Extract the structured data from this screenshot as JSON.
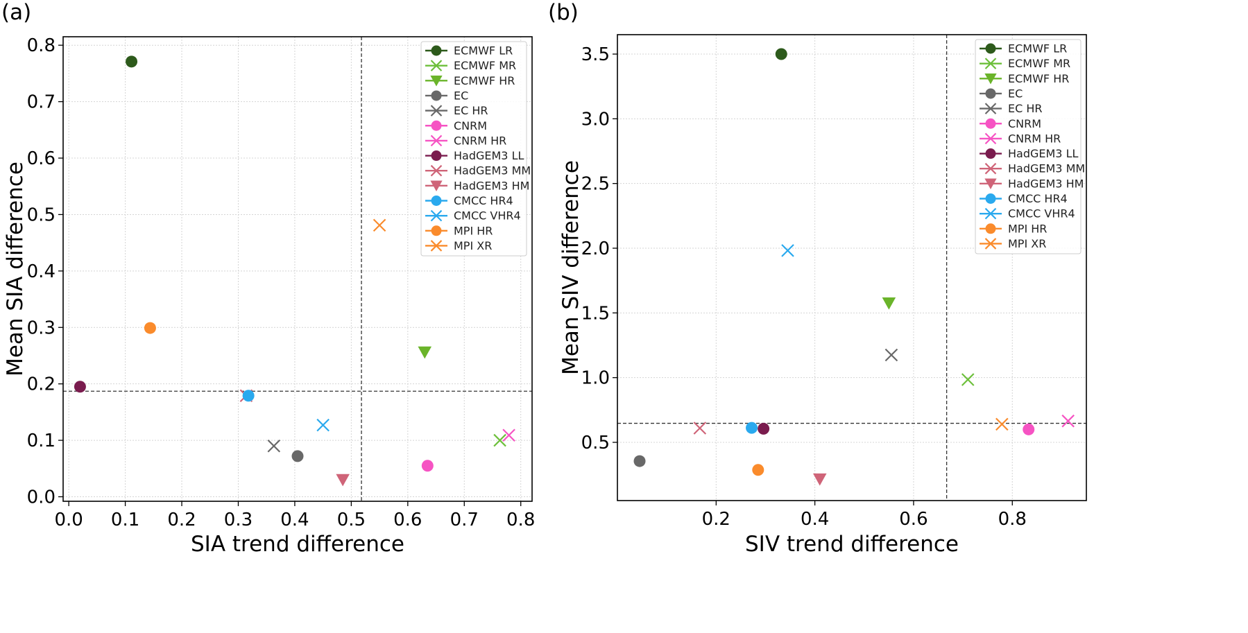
{
  "chart_data": [
    {
      "type": "scatter",
      "panel_label": "(a)",
      "xlabel": "SIA trend difference",
      "ylabel": "Mean SIA difference",
      "xlim": [
        -0.01,
        0.82
      ],
      "ylim": [
        -0.008,
        0.815
      ],
      "xticks": [
        0.0,
        0.1,
        0.2,
        0.3,
        0.4,
        0.5,
        0.6,
        0.7,
        0.8
      ],
      "xtick_labels": [
        "0.0",
        "0.1",
        "0.2",
        "0.3",
        "0.4",
        "0.5",
        "0.6",
        "0.7",
        "0.8"
      ],
      "yticks": [
        0.0,
        0.1,
        0.2,
        0.3,
        0.4,
        0.5,
        0.6,
        0.7,
        0.8
      ],
      "ytick_labels": [
        "0.0",
        "0.1",
        "0.2",
        "0.3",
        "0.4",
        "0.5",
        "0.6",
        "0.7",
        "0.8"
      ],
      "grid": true,
      "ref_lines": {
        "vertical_x": 0.518,
        "horizontal_y": 0.187
      },
      "legend_position": "upper-right",
      "series": [
        {
          "name": "ECMWF LR",
          "marker": "circle",
          "color": "#2d5a1b",
          "x": 0.111,
          "y": 0.771
        },
        {
          "name": "ECMWF MR",
          "marker": "x",
          "color": "#6cbf3a",
          "x": 0.763,
          "y": 0.1
        },
        {
          "name": "ECMWF HR",
          "marker": "triangle-down",
          "color": "#6ab42a",
          "x": 0.63,
          "y": 0.256
        },
        {
          "name": "EC",
          "marker": "circle",
          "color": "#686868",
          "x": 0.405,
          "y": 0.072
        },
        {
          "name": "EC HR",
          "marker": "x",
          "color": "#686868",
          "x": 0.363,
          "y": 0.09
        },
        {
          "name": "CNRM",
          "marker": "circle",
          "color": "#f653c3",
          "x": 0.635,
          "y": 0.055
        },
        {
          "name": "CNRM HR",
          "marker": "x",
          "color": "#f653c3",
          "x": 0.779,
          "y": 0.109
        },
        {
          "name": "HadGEM3 LL",
          "marker": "circle",
          "color": "#7a1c4e",
          "x": 0.02,
          "y": 0.195
        },
        {
          "name": "HadGEM3 MM",
          "marker": "x",
          "color": "#cf6478",
          "x": 0.314,
          "y": 0.179
        },
        {
          "name": "HadGEM3 HM",
          "marker": "triangle-down",
          "color": "#cf6478",
          "x": 0.485,
          "y": 0.03
        },
        {
          "name": "CMCC HR4",
          "marker": "circle",
          "color": "#2aa9ee",
          "x": 0.318,
          "y": 0.179
        },
        {
          "name": "CMCC VHR4",
          "marker": "x",
          "color": "#2aa9ee",
          "x": 0.45,
          "y": 0.127
        },
        {
          "name": "MPI HR",
          "marker": "circle",
          "color": "#fa8b2c",
          "x": 0.144,
          "y": 0.299
        },
        {
          "name": "MPI XR",
          "marker": "x",
          "color": "#fa8b2c",
          "x": 0.55,
          "y": 0.481
        }
      ]
    },
    {
      "type": "scatter",
      "panel_label": "(b)",
      "xlabel": "SIV trend difference",
      "ylabel": "Mean SIV difference",
      "xlim": [
        0.0,
        0.95
      ],
      "ylim": [
        0.05,
        3.65
      ],
      "xticks": [
        0.2,
        0.4,
        0.6,
        0.8
      ],
      "xtick_labels": [
        "0.2",
        "0.4",
        "0.6",
        "0.8"
      ],
      "yticks": [
        0.5,
        1.0,
        1.5,
        2.0,
        2.5,
        3.0,
        3.5
      ],
      "ytick_labels": [
        "0.5",
        "1.0",
        "1.5",
        "2.0",
        "2.5",
        "3.0",
        "3.5"
      ],
      "grid": true,
      "ref_lines": {
        "vertical_x": 0.667,
        "horizontal_y": 0.647
      },
      "legend_position": "upper-right",
      "series": [
        {
          "name": "ECMWF LR",
          "marker": "circle",
          "color": "#2d5a1b",
          "x": 0.332,
          "y": 3.5
        },
        {
          "name": "ECMWF MR",
          "marker": "x",
          "color": "#6cbf3a",
          "x": 0.71,
          "y": 0.985
        },
        {
          "name": "ECMWF HR",
          "marker": "triangle-down",
          "color": "#6ab42a",
          "x": 0.55,
          "y": 1.575
        },
        {
          "name": "EC",
          "marker": "circle",
          "color": "#686868",
          "x": 0.045,
          "y": 0.355
        },
        {
          "name": "EC HR",
          "marker": "x",
          "color": "#686868",
          "x": 0.555,
          "y": 1.175
        },
        {
          "name": "CNRM",
          "marker": "circle",
          "color": "#f653c3",
          "x": 0.833,
          "y": 0.6
        },
        {
          "name": "CNRM HR",
          "marker": "x",
          "color": "#f653c3",
          "x": 0.913,
          "y": 0.665
        },
        {
          "name": "HadGEM3 LL",
          "marker": "circle",
          "color": "#7a1c4e",
          "x": 0.296,
          "y": 0.605
        },
        {
          "name": "HadGEM3 MM",
          "marker": "x",
          "color": "#cf6478",
          "x": 0.167,
          "y": 0.61
        },
        {
          "name": "HadGEM3 HM",
          "marker": "triangle-down",
          "color": "#cf6478",
          "x": 0.41,
          "y": 0.215
        },
        {
          "name": "CMCC HR4",
          "marker": "circle",
          "color": "#2aa9ee",
          "x": 0.272,
          "y": 0.612
        },
        {
          "name": "CMCC VHR4",
          "marker": "x",
          "color": "#2aa9ee",
          "x": 0.345,
          "y": 1.982
        },
        {
          "name": "MPI HR",
          "marker": "circle",
          "color": "#fa8b2c",
          "x": 0.285,
          "y": 0.287
        },
        {
          "name": "MPI XR",
          "marker": "x",
          "color": "#fa8b2c",
          "x": 0.779,
          "y": 0.64
        }
      ]
    }
  ]
}
